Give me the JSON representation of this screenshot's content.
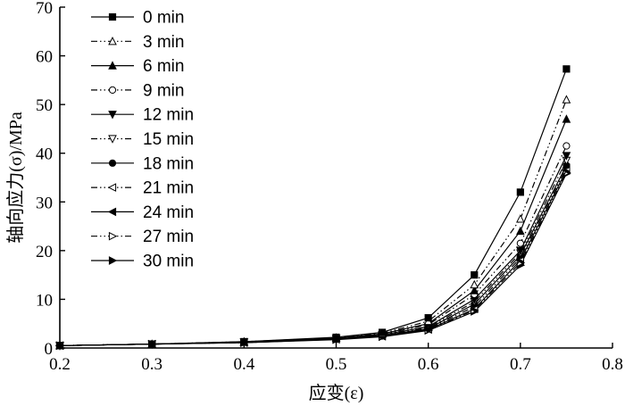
{
  "chart_data": {
    "type": "line",
    "xlabel": "应变(ε)",
    "ylabel": "轴向应力(σ)/MPa",
    "xlim": [
      0.2,
      0.8
    ],
    "ylim": [
      0,
      70
    ],
    "xticks": [
      "0.2",
      "0.3",
      "0.4",
      "0.5",
      "0.6",
      "0.7",
      "0.8"
    ],
    "yticks": [
      "0",
      "10",
      "20",
      "30",
      "40",
      "50",
      "60",
      "70"
    ],
    "grid": false,
    "legend_position": "top-left",
    "x": [
      0.2,
      0.3,
      0.4,
      0.5,
      0.55,
      0.6,
      0.65,
      0.7,
      0.75
    ],
    "series": [
      {
        "name": "0 min",
        "marker": "square-filled",
        "dash": "solid",
        "values": [
          0.5,
          0.8,
          1.3,
          2.2,
          3.2,
          6.2,
          15.0,
          32.0,
          57.3
        ]
      },
      {
        "name": "3 min",
        "marker": "triangle-open",
        "dash": "dash-dot-dot",
        "values": [
          0.5,
          0.8,
          1.3,
          2.1,
          3.0,
          5.5,
          13.0,
          26.5,
          51.0
        ]
      },
      {
        "name": "6 min",
        "marker": "triangle-filled",
        "dash": "solid",
        "values": [
          0.5,
          0.8,
          1.2,
          2.0,
          2.9,
          5.0,
          11.8,
          24.0,
          47.0
        ]
      },
      {
        "name": "9 min",
        "marker": "circle-open",
        "dash": "dash-dot-dot",
        "values": [
          0.5,
          0.8,
          1.2,
          2.0,
          2.8,
          4.8,
          11.0,
          21.5,
          41.5
        ]
      },
      {
        "name": "12 min",
        "marker": "tri-down-filled",
        "dash": "solid",
        "values": [
          0.5,
          0.8,
          1.2,
          1.9,
          2.7,
          4.4,
          10.0,
          20.0,
          39.5
        ]
      },
      {
        "name": "15 min",
        "marker": "tri-down-open",
        "dash": "dash-dot-dot",
        "values": [
          0.5,
          0.8,
          1.2,
          1.9,
          2.6,
          4.2,
          9.5,
          19.5,
          38.5
        ]
      },
      {
        "name": "18 min",
        "marker": "circle-filled",
        "dash": "solid",
        "values": [
          0.5,
          0.8,
          1.2,
          1.8,
          2.5,
          4.0,
          9.0,
          19.0,
          37.5
        ]
      },
      {
        "name": "21 min",
        "marker": "tri-left-open",
        "dash": "dash-dot-dot",
        "values": [
          0.5,
          0.8,
          1.2,
          1.8,
          2.5,
          3.9,
          8.5,
          18.5,
          37.0
        ]
      },
      {
        "name": "24 min",
        "marker": "tri-left-filled",
        "dash": "solid",
        "values": [
          0.5,
          0.8,
          1.1,
          1.8,
          2.4,
          3.8,
          8.0,
          18.0,
          36.5
        ]
      },
      {
        "name": "27 min",
        "marker": "tri-right-open",
        "dash": "dash-dot-dot",
        "values": [
          0.5,
          0.8,
          1.1,
          1.8,
          2.4,
          3.7,
          7.8,
          17.5,
          36.0
        ]
      },
      {
        "name": "30 min",
        "marker": "tri-right-filled",
        "dash": "solid",
        "values": [
          0.5,
          0.8,
          1.1,
          1.7,
          2.3,
          3.6,
          7.5,
          17.0,
          35.8
        ]
      }
    ]
  }
}
